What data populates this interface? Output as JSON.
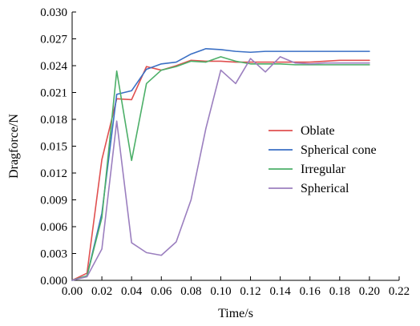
{
  "chart_data": {
    "type": "line",
    "title": "",
    "xlabel": "Time/s",
    "ylabel": "Dragforce/N",
    "xlim": [
      0,
      0.22
    ],
    "ylim": [
      0,
      0.03
    ],
    "x_ticks": [
      "0.00",
      "0.02",
      "0.04",
      "0.06",
      "0.08",
      "0.10",
      "0.12",
      "0.14",
      "0.16",
      "0.18",
      "0.20",
      "0.22"
    ],
    "y_ticks": [
      "0.000",
      "0.003",
      "0.006",
      "0.009",
      "0.012",
      "0.015",
      "0.018",
      "0.021",
      "0.024",
      "0.027",
      "0.030"
    ],
    "grid": false,
    "legend_position": "center-right",
    "x": [
      0,
      0.01,
      0.02,
      0.03,
      0.04,
      0.05,
      0.06,
      0.07,
      0.08,
      0.09,
      0.1,
      0.11,
      0.12,
      0.13,
      0.14,
      0.15,
      0.16,
      0.17,
      0.18,
      0.19,
      0.2
    ],
    "series": [
      {
        "name": "Oblate",
        "color": "#e05050",
        "values": [
          0,
          0.0008,
          0.0135,
          0.0203,
          0.0202,
          0.0239,
          0.0235,
          0.024,
          0.0246,
          0.0245,
          0.0245,
          0.0244,
          0.0244,
          0.0244,
          0.0244,
          0.0244,
          0.0244,
          0.0245,
          0.0246,
          0.0246,
          0.0246
        ]
      },
      {
        "name": "Spherical cone",
        "color": "#3a6fc4",
        "values": [
          0,
          0.0005,
          0.0075,
          0.0208,
          0.0212,
          0.0236,
          0.0242,
          0.0244,
          0.0253,
          0.0259,
          0.0258,
          0.0256,
          0.0255,
          0.0256,
          0.0256,
          0.0256,
          0.0256,
          0.0256,
          0.0256,
          0.0256,
          0.0256
        ]
      },
      {
        "name": "Irregular",
        "color": "#4caf68",
        "values": [
          0,
          0.0005,
          0.007,
          0.0234,
          0.0134,
          0.022,
          0.0235,
          0.0239,
          0.0245,
          0.0244,
          0.025,
          0.0245,
          0.0242,
          0.0242,
          0.0242,
          0.0241,
          0.0241,
          0.0241,
          0.0241,
          0.0241,
          0.0241
        ]
      },
      {
        "name": "Spherical",
        "color": "#9b7fbf",
        "values": [
          0,
          0.0004,
          0.0035,
          0.0178,
          0.0042,
          0.0031,
          0.0028,
          0.0043,
          0.009,
          0.017,
          0.0235,
          0.022,
          0.0248,
          0.0233,
          0.025,
          0.0243,
          0.0242,
          0.0243,
          0.0243,
          0.0243,
          0.0243
        ]
      }
    ]
  }
}
